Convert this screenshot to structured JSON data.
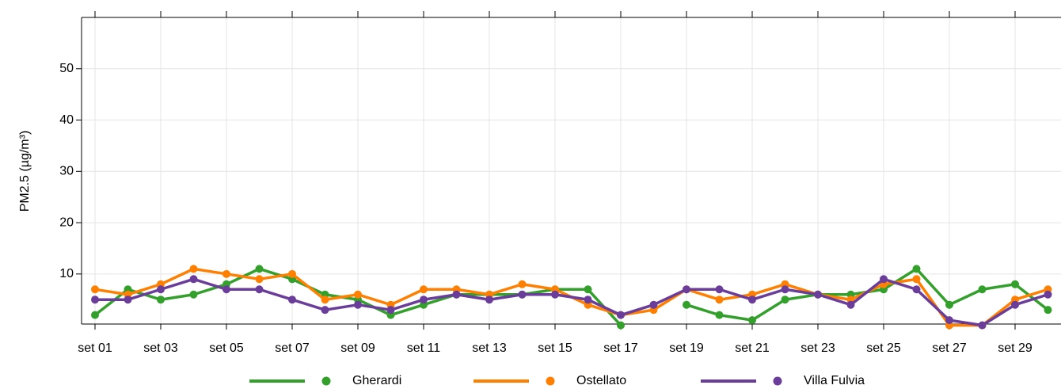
{
  "chart_data": {
    "type": "line",
    "y_label": "PM2.5 (µg/m³)",
    "categories": [
      "set 01",
      null,
      "set 03",
      null,
      "set 05",
      null,
      "set 07",
      null,
      "set 09",
      null,
      "set 11",
      null,
      "set 13",
      null,
      "set 15",
      null,
      "set 17",
      null,
      "set 19",
      null,
      "set 21",
      null,
      "set 23",
      null,
      "set 25",
      null,
      "set 27",
      null,
      "set 29",
      null
    ],
    "series": [
      {
        "name": "Gherardi",
        "color": "#33a02c",
        "values": [
          2,
          7,
          5,
          6,
          8,
          11,
          9,
          6,
          5,
          2,
          4,
          6,
          6,
          6,
          7,
          7,
          0,
          null,
          4,
          2,
          1,
          5,
          6,
          6,
          7,
          11,
          4,
          7,
          8,
          3
        ]
      },
      {
        "name": "Ostellato",
        "color": "#ff7f00",
        "values": [
          7,
          6,
          8,
          11,
          10,
          9,
          10,
          5,
          6,
          4,
          7,
          7,
          6,
          8,
          7,
          4,
          2,
          3,
          7,
          5,
          6,
          8,
          6,
          5,
          8,
          9,
          0,
          0,
          5,
          7
        ]
      },
      {
        "name": "Villa Fulvia",
        "color": "#6a3d9a",
        "values": [
          5,
          5,
          7,
          9,
          7,
          7,
          5,
          3,
          4,
          3,
          5,
          6,
          5,
          6,
          6,
          5,
          2,
          4,
          7,
          7,
          5,
          7,
          6,
          4,
          9,
          7,
          1,
          0,
          4,
          6
        ]
      }
    ],
    "ylim": [
      0,
      60
    ],
    "yticks": [
      10,
      20,
      30,
      40,
      50
    ],
    "grid": true,
    "legend": "bottom"
  }
}
